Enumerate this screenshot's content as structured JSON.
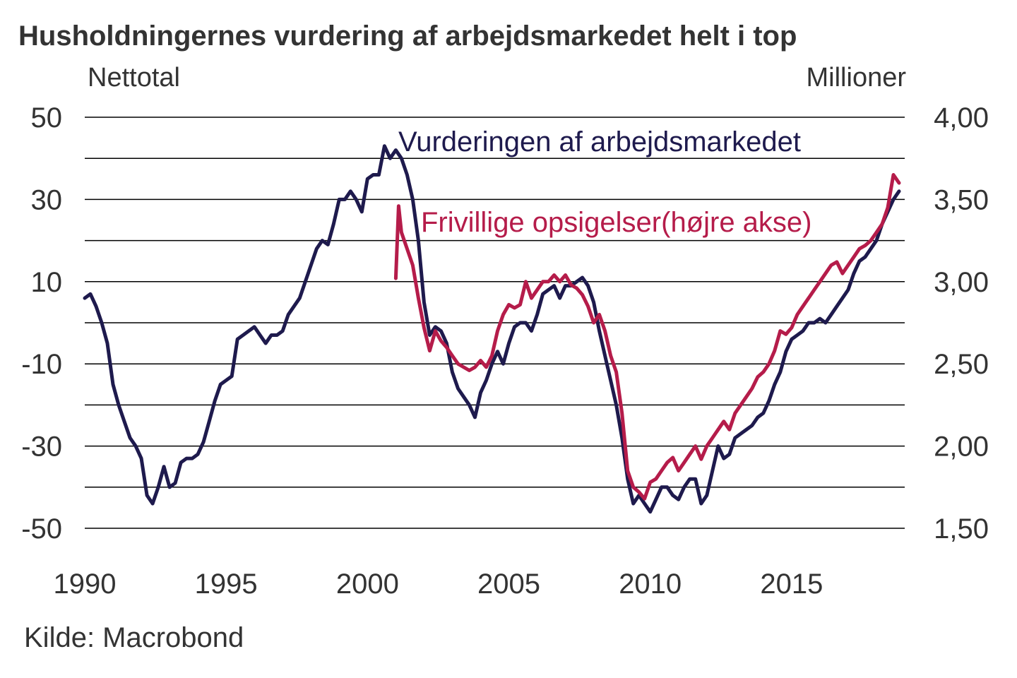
{
  "chart_data": {
    "type": "line",
    "title": "Husholdningernes vurdering af arbejdsmarkedet helt i top",
    "left_axis": {
      "label": "Nettotal",
      "ylim": [
        -50,
        50
      ],
      "ticks": [
        50,
        30,
        10,
        -10,
        -30,
        -50
      ],
      "tick_labels": [
        "50",
        "30",
        "10",
        "-10",
        "-30",
        "-50"
      ]
    },
    "right_axis": {
      "label": "Millioner",
      "ylim": [
        1.5,
        4.0
      ],
      "ticks": [
        4.0,
        3.5,
        3.0,
        2.5,
        2.0,
        1.5
      ],
      "tick_labels": [
        "4,00",
        "3,50",
        "3,00",
        "2,50",
        "2,00",
        "1,50"
      ]
    },
    "x_axis": {
      "xlim": [
        1990,
        2019
      ],
      "ticks": [
        1990,
        1995,
        2000,
        2005,
        2010,
        2015
      ],
      "tick_labels": [
        "1990",
        "1995",
        "2000",
        "2005",
        "2010",
        "2015"
      ]
    },
    "grid": true,
    "legend": "inline labels",
    "source": "Kilde: Macrobond",
    "series": [
      {
        "name": "Vurderingen af arbejdsmarkedet",
        "axis": "left",
        "color": "#1e1a4d",
        "points": [
          [
            1990.0,
            6
          ],
          [
            1990.2,
            7
          ],
          [
            1990.4,
            4
          ],
          [
            1990.6,
            0
          ],
          [
            1990.8,
            -5
          ],
          [
            1991.0,
            -15
          ],
          [
            1991.2,
            -20
          ],
          [
            1991.4,
            -24
          ],
          [
            1991.6,
            -28
          ],
          [
            1991.8,
            -30
          ],
          [
            1992.0,
            -33
          ],
          [
            1992.2,
            -42
          ],
          [
            1992.4,
            -44
          ],
          [
            1992.6,
            -40
          ],
          [
            1992.8,
            -35
          ],
          [
            1993.0,
            -40
          ],
          [
            1993.2,
            -39
          ],
          [
            1993.4,
            -34
          ],
          [
            1993.6,
            -33
          ],
          [
            1993.8,
            -33
          ],
          [
            1994.0,
            -32
          ],
          [
            1994.2,
            -29
          ],
          [
            1994.4,
            -24
          ],
          [
            1994.6,
            -19
          ],
          [
            1994.8,
            -15
          ],
          [
            1995.0,
            -14
          ],
          [
            1995.2,
            -13
          ],
          [
            1995.4,
            -4
          ],
          [
            1995.6,
            -3
          ],
          [
            1995.8,
            -2
          ],
          [
            1996.0,
            -1
          ],
          [
            1996.2,
            -3
          ],
          [
            1996.4,
            -5
          ],
          [
            1996.6,
            -3
          ],
          [
            1996.8,
            -3
          ],
          [
            1997.0,
            -2
          ],
          [
            1997.2,
            2
          ],
          [
            1997.4,
            4
          ],
          [
            1997.6,
            6
          ],
          [
            1997.8,
            10
          ],
          [
            1998.0,
            14
          ],
          [
            1998.2,
            18
          ],
          [
            1998.4,
            20
          ],
          [
            1998.6,
            19
          ],
          [
            1998.8,
            24
          ],
          [
            1999.0,
            30
          ],
          [
            1999.2,
            30
          ],
          [
            1999.4,
            32
          ],
          [
            1999.6,
            30
          ],
          [
            1999.8,
            27
          ],
          [
            2000.0,
            35
          ],
          [
            2000.2,
            36
          ],
          [
            2000.4,
            36
          ],
          [
            2000.6,
            43
          ],
          [
            2000.8,
            40
          ],
          [
            2001.0,
            42
          ],
          [
            2001.2,
            40
          ],
          [
            2001.4,
            36
          ],
          [
            2001.6,
            30
          ],
          [
            2001.8,
            20
          ],
          [
            2002.0,
            5
          ],
          [
            2002.2,
            -3
          ],
          [
            2002.4,
            -1
          ],
          [
            2002.6,
            -2
          ],
          [
            2002.8,
            -5
          ],
          [
            2003.0,
            -12
          ],
          [
            2003.2,
            -16
          ],
          [
            2003.4,
            -18
          ],
          [
            2003.6,
            -20
          ],
          [
            2003.8,
            -23
          ],
          [
            2004.0,
            -17
          ],
          [
            2004.2,
            -14
          ],
          [
            2004.4,
            -10
          ],
          [
            2004.6,
            -7
          ],
          [
            2004.8,
            -10
          ],
          [
            2005.0,
            -5
          ],
          [
            2005.2,
            -1
          ],
          [
            2005.4,
            0
          ],
          [
            2005.6,
            0
          ],
          [
            2005.8,
            -2
          ],
          [
            2006.0,
            2
          ],
          [
            2006.2,
            7
          ],
          [
            2006.4,
            8
          ],
          [
            2006.6,
            9
          ],
          [
            2006.8,
            6
          ],
          [
            2007.0,
            9
          ],
          [
            2007.2,
            9
          ],
          [
            2007.4,
            10
          ],
          [
            2007.6,
            11
          ],
          [
            2007.8,
            9
          ],
          [
            2008.0,
            5
          ],
          [
            2008.2,
            -2
          ],
          [
            2008.4,
            -8
          ],
          [
            2008.6,
            -14
          ],
          [
            2008.8,
            -20
          ],
          [
            2009.0,
            -28
          ],
          [
            2009.2,
            -38
          ],
          [
            2009.4,
            -44
          ],
          [
            2009.6,
            -42
          ],
          [
            2009.8,
            -44
          ],
          [
            2010.0,
            -46
          ],
          [
            2010.2,
            -43
          ],
          [
            2010.4,
            -40
          ],
          [
            2010.6,
            -40
          ],
          [
            2010.8,
            -42
          ],
          [
            2011.0,
            -43
          ],
          [
            2011.2,
            -40
          ],
          [
            2011.4,
            -38
          ],
          [
            2011.6,
            -38
          ],
          [
            2011.8,
            -44
          ],
          [
            2012.0,
            -42
          ],
          [
            2012.2,
            -36
          ],
          [
            2012.4,
            -30
          ],
          [
            2012.6,
            -33
          ],
          [
            2012.8,
            -32
          ],
          [
            2013.0,
            -28
          ],
          [
            2013.2,
            -27
          ],
          [
            2013.4,
            -26
          ],
          [
            2013.6,
            -25
          ],
          [
            2013.8,
            -23
          ],
          [
            2014.0,
            -22
          ],
          [
            2014.2,
            -19
          ],
          [
            2014.4,
            -15
          ],
          [
            2014.6,
            -12
          ],
          [
            2014.8,
            -7
          ],
          [
            2015.0,
            -4
          ],
          [
            2015.2,
            -3
          ],
          [
            2015.4,
            -2
          ],
          [
            2015.6,
            0
          ],
          [
            2015.8,
            0
          ],
          [
            2016.0,
            1
          ],
          [
            2016.2,
            0
          ],
          [
            2016.4,
            2
          ],
          [
            2016.6,
            4
          ],
          [
            2016.8,
            6
          ],
          [
            2017.0,
            8
          ],
          [
            2017.2,
            12
          ],
          [
            2017.4,
            15
          ],
          [
            2017.6,
            16
          ],
          [
            2017.8,
            18
          ],
          [
            2018.0,
            20
          ],
          [
            2018.2,
            24
          ],
          [
            2018.4,
            27
          ],
          [
            2018.6,
            30
          ],
          [
            2018.8,
            32
          ]
        ]
      },
      {
        "name": "Frivillige opsigelser(højre akse)",
        "axis": "right",
        "color": "#b51c4a",
        "points": [
          [
            2001.0,
            3.02
          ],
          [
            2001.1,
            3.46
          ],
          [
            2001.2,
            3.3
          ],
          [
            2001.4,
            3.2
          ],
          [
            2001.6,
            3.1
          ],
          [
            2001.8,
            2.9
          ],
          [
            2002.0,
            2.72
          ],
          [
            2002.2,
            2.58
          ],
          [
            2002.4,
            2.7
          ],
          [
            2002.6,
            2.64
          ],
          [
            2002.8,
            2.6
          ],
          [
            2003.0,
            2.55
          ],
          [
            2003.2,
            2.5
          ],
          [
            2003.4,
            2.48
          ],
          [
            2003.6,
            2.46
          ],
          [
            2003.8,
            2.48
          ],
          [
            2004.0,
            2.52
          ],
          [
            2004.2,
            2.48
          ],
          [
            2004.4,
            2.55
          ],
          [
            2004.6,
            2.7
          ],
          [
            2004.8,
            2.8
          ],
          [
            2005.0,
            2.86
          ],
          [
            2005.2,
            2.84
          ],
          [
            2005.4,
            2.86
          ],
          [
            2005.6,
            3.0
          ],
          [
            2005.8,
            2.9
          ],
          [
            2006.0,
            2.95
          ],
          [
            2006.2,
            3.0
          ],
          [
            2006.4,
            3.0
          ],
          [
            2006.6,
            3.04
          ],
          [
            2006.8,
            3.0
          ],
          [
            2007.0,
            3.04
          ],
          [
            2007.2,
            2.98
          ],
          [
            2007.4,
            2.96
          ],
          [
            2007.6,
            2.92
          ],
          [
            2007.8,
            2.85
          ],
          [
            2008.0,
            2.75
          ],
          [
            2008.2,
            2.8
          ],
          [
            2008.4,
            2.7
          ],
          [
            2008.6,
            2.55
          ],
          [
            2008.8,
            2.45
          ],
          [
            2009.0,
            2.2
          ],
          [
            2009.2,
            1.85
          ],
          [
            2009.4,
            1.75
          ],
          [
            2009.6,
            1.72
          ],
          [
            2009.8,
            1.68
          ],
          [
            2010.0,
            1.78
          ],
          [
            2010.2,
            1.8
          ],
          [
            2010.4,
            1.85
          ],
          [
            2010.6,
            1.9
          ],
          [
            2010.8,
            1.93
          ],
          [
            2011.0,
            1.85
          ],
          [
            2011.2,
            1.9
          ],
          [
            2011.4,
            1.95
          ],
          [
            2011.6,
            2.0
          ],
          [
            2011.8,
            1.92
          ],
          [
            2012.0,
            2.0
          ],
          [
            2012.2,
            2.05
          ],
          [
            2012.4,
            2.1
          ],
          [
            2012.6,
            2.15
          ],
          [
            2012.8,
            2.1
          ],
          [
            2013.0,
            2.2
          ],
          [
            2013.2,
            2.25
          ],
          [
            2013.4,
            2.3
          ],
          [
            2013.6,
            2.35
          ],
          [
            2013.8,
            2.42
          ],
          [
            2014.0,
            2.45
          ],
          [
            2014.2,
            2.5
          ],
          [
            2014.4,
            2.58
          ],
          [
            2014.6,
            2.7
          ],
          [
            2014.8,
            2.68
          ],
          [
            2015.0,
            2.72
          ],
          [
            2015.2,
            2.8
          ],
          [
            2015.4,
            2.85
          ],
          [
            2015.6,
            2.9
          ],
          [
            2015.8,
            2.95
          ],
          [
            2016.0,
            3.0
          ],
          [
            2016.2,
            3.05
          ],
          [
            2016.4,
            3.1
          ],
          [
            2016.6,
            3.12
          ],
          [
            2016.8,
            3.05
          ],
          [
            2017.0,
            3.1
          ],
          [
            2017.2,
            3.15
          ],
          [
            2017.4,
            3.2
          ],
          [
            2017.6,
            3.22
          ],
          [
            2017.8,
            3.25
          ],
          [
            2018.0,
            3.3
          ],
          [
            2018.2,
            3.35
          ],
          [
            2018.4,
            3.45
          ],
          [
            2018.6,
            3.65
          ],
          [
            2018.8,
            3.6
          ]
        ]
      }
    ]
  }
}
